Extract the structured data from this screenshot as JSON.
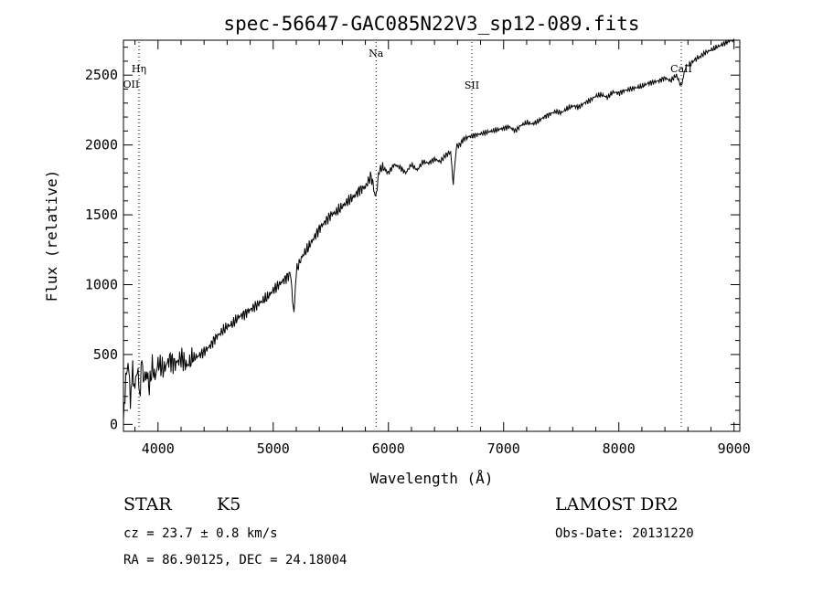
{
  "chart_data": {
    "type": "line",
    "title": "spec-56647-GAC085N22V3_sp12-089.fits",
    "xlabel": "Wavelength (Å)",
    "ylabel": "Flux (relative)",
    "xlim": [
      3700,
      9050
    ],
    "ylim": [
      -50,
      2750
    ],
    "x_ticks": [
      4000,
      5000,
      6000,
      7000,
      8000,
      9000
    ],
    "y_ticks": [
      0,
      500,
      1000,
      1500,
      2000,
      2500
    ],
    "grid": false,
    "line_color": "#000000",
    "series": [
      {
        "x": [
          3700,
          3720,
          3740,
          3760,
          3780,
          3800,
          3820,
          3840,
          3860,
          3880,
          3900,
          3925,
          3950,
          3975,
          4000,
          4050,
          4100,
          4150,
          4200,
          4250,
          4300,
          4350,
          4400,
          4450,
          4500,
          4550,
          4600,
          4650,
          4700,
          4750,
          4800,
          4850,
          4900,
          4950,
          5000,
          5050,
          5100,
          5150,
          5180,
          5200,
          5250,
          5300,
          5350,
          5400,
          5450,
          5500,
          5550,
          5600,
          5650,
          5700,
          5750,
          5800,
          5850,
          5890,
          5920,
          5950,
          6000,
          6050,
          6100,
          6150,
          6200,
          6250,
          6300,
          6350,
          6400,
          6450,
          6500,
          6540,
          6563,
          6590,
          6620,
          6650,
          6700,
          6750,
          6800,
          6850,
          6900,
          6950,
          7000,
          7050,
          7100,
          7150,
          7200,
          7250,
          7300,
          7350,
          7400,
          7450,
          7500,
          7550,
          7600,
          7650,
          7700,
          7750,
          7800,
          7850,
          7900,
          7950,
          8000,
          8050,
          8100,
          8150,
          8200,
          8250,
          8300,
          8350,
          8400,
          8450,
          8500,
          8542,
          8580,
          8620,
          8660,
          8700,
          8750,
          8800,
          8850,
          8900,
          8950,
          9000
        ],
        "y": [
          60,
          300,
          460,
          180,
          380,
          250,
          420,
          200,
          460,
          300,
          380,
          260,
          420,
          330,
          440,
          390,
          470,
          430,
          480,
          420,
          470,
          490,
          520,
          560,
          620,
          660,
          700,
          720,
          770,
          790,
          820,
          850,
          880,
          910,
          960,
          1000,
          1040,
          1080,
          780,
          1100,
          1200,
          1260,
          1330,
          1400,
          1450,
          1500,
          1520,
          1560,
          1600,
          1630,
          1680,
          1700,
          1780,
          1620,
          1820,
          1840,
          1800,
          1860,
          1840,
          1800,
          1860,
          1820,
          1880,
          1870,
          1900,
          1880,
          1930,
          1950,
          1720,
          1990,
          2000,
          2040,
          2060,
          2070,
          2080,
          2090,
          2100,
          2110,
          2120,
          2130,
          2100,
          2140,
          2160,
          2150,
          2170,
          2200,
          2220,
          2240,
          2230,
          2260,
          2280,
          2270,
          2300,
          2320,
          2350,
          2360,
          2340,
          2380,
          2370,
          2390,
          2400,
          2410,
          2420,
          2440,
          2450,
          2460,
          2480,
          2460,
          2500,
          2420,
          2560,
          2580,
          2610,
          2630,
          2660,
          2680,
          2700,
          2720,
          2740,
          2760
        ]
      }
    ],
    "lines": [
      {
        "label": "Hη",
        "wavelength": 3835
      },
      {
        "label": "OII",
        "wavelength": 3727
      },
      {
        "label": "Na",
        "wavelength": 5893
      },
      {
        "label": "SII",
        "wavelength": 6724
      },
      {
        "label": "CaII",
        "wavelength": 8542
      }
    ]
  },
  "info": {
    "object_class": "STAR",
    "subclass": "K5",
    "survey": "LAMOST DR2",
    "cz": "cz = 23.7 ± 0.8 km/s",
    "obs_date": "Obs-Date: 20131220",
    "coords": "RA =  86.90125, DEC =  24.18004"
  }
}
